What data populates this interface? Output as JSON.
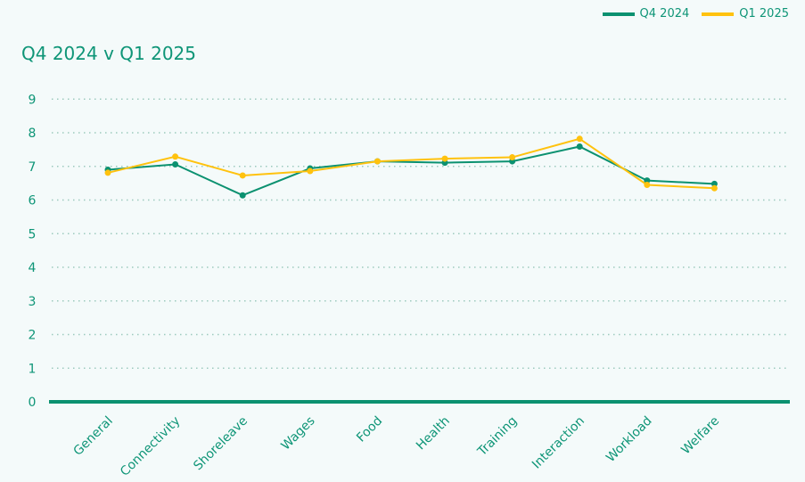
{
  "chart_data": {
    "type": "line",
    "title": "Q4 2024 v Q1 2025",
    "categories": [
      "General",
      "Connectivity",
      "Shoreleave",
      "Wages",
      "Food",
      "Health",
      "Training",
      "Interaction",
      "Workload",
      "Welfare"
    ],
    "series": [
      {
        "name": "Q4 2024",
        "color": "#0b9170",
        "values": [
          6.9,
          7.06,
          6.14,
          6.94,
          7.15,
          7.11,
          7.15,
          7.59,
          6.58,
          6.48
        ]
      },
      {
        "name": "Q1 2025",
        "color": "#ffc20e",
        "values": [
          6.81,
          7.29,
          6.73,
          6.86,
          7.15,
          7.23,
          7.27,
          7.82,
          6.45,
          6.35
        ]
      }
    ],
    "yticks": [
      0,
      1,
      2,
      3,
      4,
      5,
      6,
      7,
      8,
      9
    ],
    "ylim": [
      0,
      9
    ],
    "grid": true,
    "legend": "top-right"
  }
}
